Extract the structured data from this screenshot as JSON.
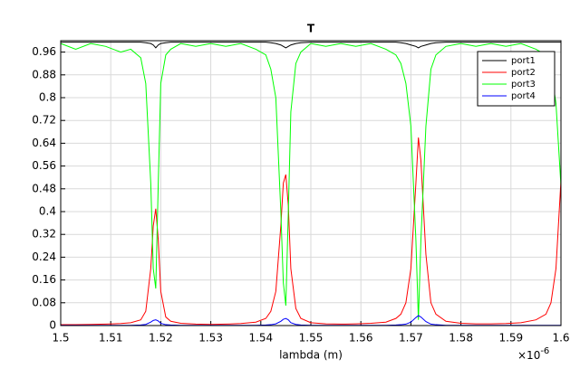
{
  "chart_data": {
    "type": "line",
    "title": "T",
    "x_label": "lambda (m)",
    "x_exponent_base": "×10",
    "x_exponent": "-6",
    "x": [
      1.5,
      1.503,
      1.506,
      1.509,
      1.512,
      1.514,
      1.516,
      1.517,
      1.518,
      1.5185,
      1.519,
      1.5195,
      1.52,
      1.521,
      1.522,
      1.524,
      1.527,
      1.53,
      1.533,
      1.536,
      1.539,
      1.541,
      1.542,
      1.543,
      1.544,
      1.5445,
      1.545,
      1.5455,
      1.546,
      1.547,
      1.548,
      1.55,
      1.553,
      1.556,
      1.559,
      1.562,
      1.565,
      1.567,
      1.568,
      1.569,
      1.57,
      1.571,
      1.5715,
      1.572,
      1.573,
      1.574,
      1.575,
      1.577,
      1.58,
      1.583,
      1.586,
      1.589,
      1.592,
      1.595,
      1.597,
      1.598,
      1.599,
      1.6
    ],
    "series": [
      {
        "name": "port1",
        "color": "#000000",
        "values": [
          0.995,
          0.995,
          0.995,
          0.995,
          0.995,
          0.995,
          0.995,
          0.993,
          0.99,
          0.985,
          0.975,
          0.985,
          0.99,
          0.993,
          0.995,
          0.995,
          0.995,
          0.995,
          0.995,
          0.995,
          0.995,
          0.995,
          0.993,
          0.99,
          0.985,
          0.98,
          0.975,
          0.98,
          0.985,
          0.99,
          0.993,
          0.995,
          0.995,
          0.995,
          0.995,
          0.995,
          0.995,
          0.995,
          0.993,
          0.99,
          0.985,
          0.98,
          0.975,
          0.98,
          0.985,
          0.99,
          0.993,
          0.995,
          0.995,
          0.995,
          0.995,
          0.995,
          0.995,
          0.995,
          0.995,
          0.995,
          0.995,
          0.995
        ]
      },
      {
        "name": "port2",
        "color": "#ff0000",
        "values": [
          0.003,
          0.003,
          0.004,
          0.005,
          0.007,
          0.01,
          0.02,
          0.05,
          0.2,
          0.35,
          0.41,
          0.3,
          0.12,
          0.03,
          0.015,
          0.008,
          0.005,
          0.004,
          0.005,
          0.007,
          0.012,
          0.025,
          0.05,
          0.12,
          0.35,
          0.5,
          0.53,
          0.42,
          0.2,
          0.06,
          0.025,
          0.01,
          0.006,
          0.005,
          0.006,
          0.008,
          0.012,
          0.025,
          0.04,
          0.08,
          0.2,
          0.5,
          0.66,
          0.58,
          0.25,
          0.08,
          0.04,
          0.015,
          0.008,
          0.006,
          0.006,
          0.007,
          0.01,
          0.02,
          0.04,
          0.08,
          0.2,
          0.51
        ]
      },
      {
        "name": "port3",
        "color": "#00ff00",
        "values": [
          0.99,
          0.97,
          0.99,
          0.98,
          0.96,
          0.97,
          0.94,
          0.85,
          0.5,
          0.2,
          0.13,
          0.5,
          0.85,
          0.95,
          0.97,
          0.99,
          0.98,
          0.99,
          0.98,
          0.99,
          0.97,
          0.95,
          0.9,
          0.8,
          0.4,
          0.15,
          0.07,
          0.4,
          0.75,
          0.92,
          0.96,
          0.99,
          0.98,
          0.99,
          0.98,
          0.99,
          0.97,
          0.95,
          0.92,
          0.85,
          0.7,
          0.3,
          0.02,
          0.3,
          0.7,
          0.9,
          0.95,
          0.98,
          0.99,
          0.98,
          0.99,
          0.98,
          0.99,
          0.97,
          0.95,
          0.9,
          0.78,
          0.49
        ]
      },
      {
        "name": "port4",
        "color": "#0000ff",
        "values": [
          0.001,
          0.001,
          0.001,
          0.001,
          0.001,
          0.001,
          0.002,
          0.004,
          0.012,
          0.018,
          0.02,
          0.016,
          0.008,
          0.003,
          0.002,
          0.001,
          0.001,
          0.001,
          0.001,
          0.001,
          0.001,
          0.002,
          0.003,
          0.006,
          0.015,
          0.022,
          0.025,
          0.02,
          0.01,
          0.004,
          0.002,
          0.001,
          0.001,
          0.001,
          0.001,
          0.001,
          0.001,
          0.002,
          0.003,
          0.005,
          0.012,
          0.028,
          0.035,
          0.03,
          0.014,
          0.005,
          0.003,
          0.001,
          0.001,
          0.001,
          0.001,
          0.001,
          0.001,
          0.001,
          0.001,
          0.001,
          0.001,
          0.001
        ]
      }
    ],
    "xlim": [
      1.5,
      1.6
    ],
    "xticks": [
      1.5,
      1.51,
      1.52,
      1.53,
      1.54,
      1.55,
      1.56,
      1.57,
      1.58,
      1.59,
      1.6
    ],
    "ylim": [
      0,
      1
    ],
    "yticks": [
      0,
      0.08,
      0.16,
      0.24,
      0.32,
      0.4,
      0.48,
      0.56,
      0.64,
      0.72,
      0.8,
      0.88,
      0.96
    ],
    "grid": true,
    "legend": "upper right"
  }
}
